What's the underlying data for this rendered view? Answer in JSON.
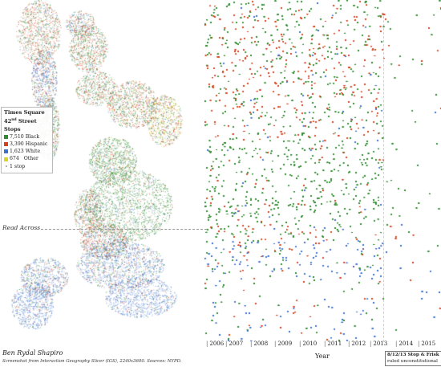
{
  "legend": {
    "title": "Times Square",
    "subtitle_base": "42",
    "subtitle_sup": "nd",
    "subtitle_rest": " Street Stops",
    "items": [
      {
        "count": "7,510",
        "label": "Black",
        "color": "#2e8b2e"
      },
      {
        "count": "3,390",
        "label": "Hispanic",
        "color": "#d4401a"
      },
      {
        "count": "1,623",
        "label": "White",
        "color": "#3a6fd0"
      },
      {
        "count": "674",
        "label": "Other",
        "color": "#d8d42a"
      }
    ],
    "stop_label": "1 stop"
  },
  "annotations": {
    "read_across": "Read Across",
    "policy_line1": "8/12/13 Stop & Frisk",
    "policy_line2": "ruled unconstitutional"
  },
  "footer": {
    "author": "Ben Rydal Shapiro",
    "caption": "Screenshot from Interaction Geography Slicer (IGS), 2240x3600. Sources: NYPD."
  },
  "timeline": {
    "axis_label": "Year",
    "years": [
      "2006",
      "2007",
      "2008",
      "2009",
      "2010",
      "2011",
      "2012",
      "2013",
      "2014",
      "2015"
    ]
  }
}
